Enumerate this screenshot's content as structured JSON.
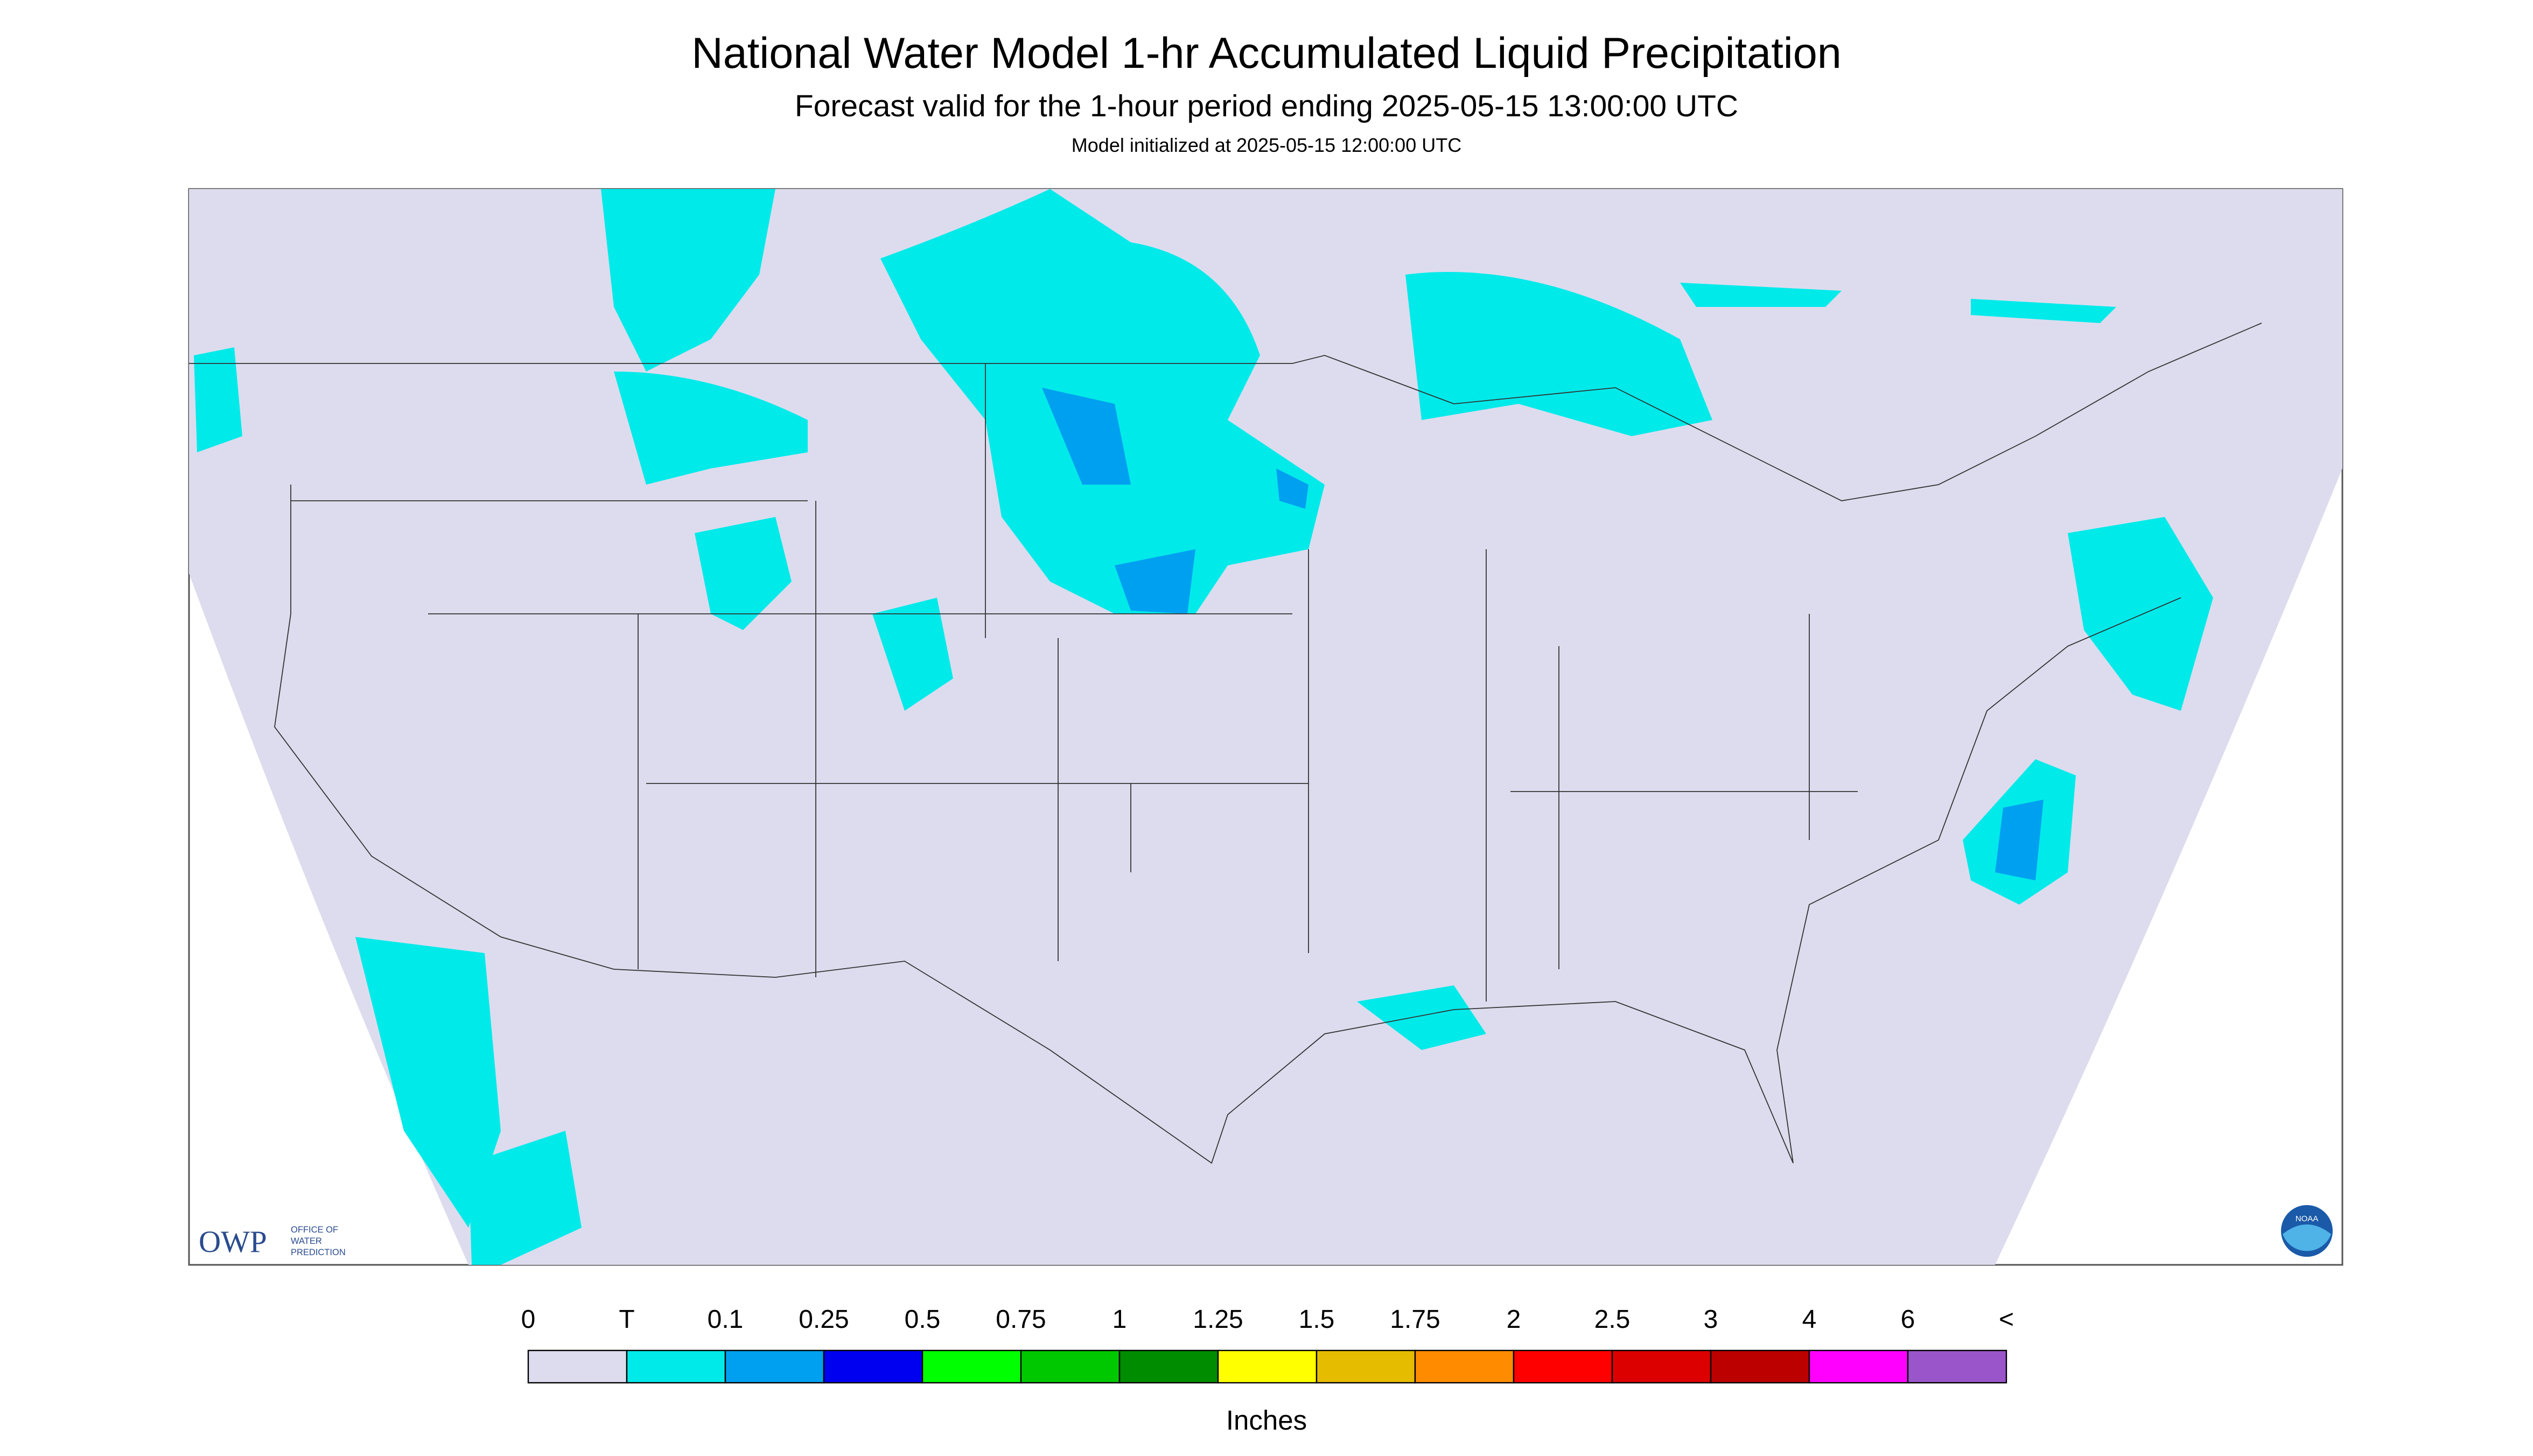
{
  "header": {
    "title": "National Water Model 1-hr Accumulated Liquid Precipitation",
    "subtitle": "Forecast valid for the 1-hour period ending 2025-05-15 13:00:00 UTC",
    "note": "Model initialized at 2025-05-15 12:00:00 UTC"
  },
  "legend": {
    "labels": [
      "0",
      "T",
      "0.1",
      "0.25",
      "0.5",
      "0.75",
      "1",
      "1.25",
      "1.5",
      "1.75",
      "2",
      "2.5",
      "3",
      "4",
      "6",
      "<"
    ],
    "colors": [
      "#dcdcee",
      "#00eaea",
      "#00a0f0",
      "#0000f0",
      "#00ff00",
      "#00c800",
      "#008c00",
      "#ffff00",
      "#e6bc00",
      "#ff8c00",
      "#ff0000",
      "#dc0000",
      "#bc0000",
      "#ff00ff",
      "#9955c9"
    ],
    "unit": "Inches"
  },
  "logos": {
    "owp": "OWP",
    "owp_text": [
      "OFFICE OF",
      "WATER",
      "PREDICTION"
    ],
    "noaa": "NOAA"
  }
}
